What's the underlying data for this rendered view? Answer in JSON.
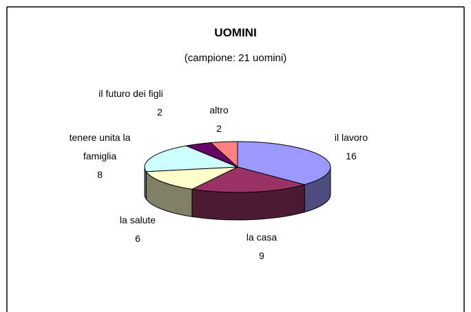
{
  "chart_data": {
    "type": "pie",
    "title": "UOMINI",
    "subtitle": "(campione: 21 uomini)",
    "categories": [
      "il lavoro",
      "la casa",
      "la salute",
      "tenere unita la famiglia",
      "il futuro dei figli",
      "altro"
    ],
    "values": [
      16,
      9,
      6,
      8,
      2,
      2
    ],
    "colors": [
      "#9999ff",
      "#993366",
      "#ffffcc",
      "#ccffff",
      "#660066",
      "#ff8080"
    ]
  }
}
